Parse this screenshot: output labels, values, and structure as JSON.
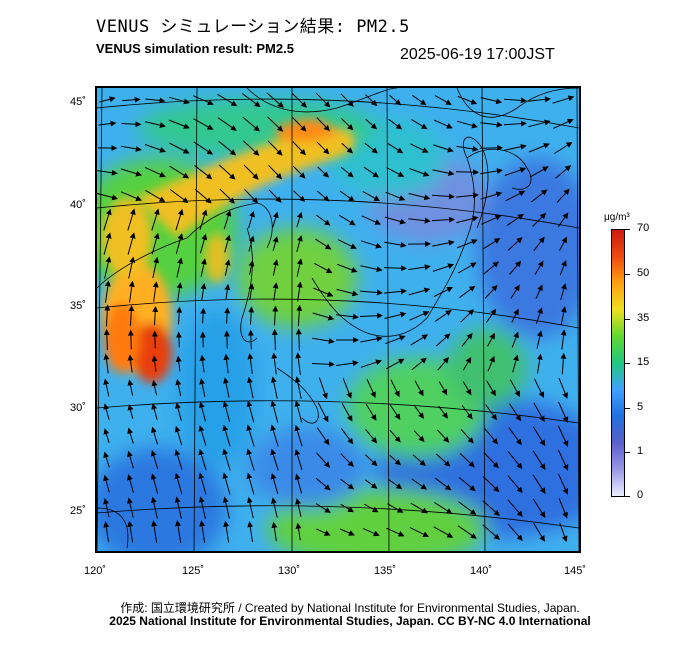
{
  "header": {
    "title_ja": "VENUS シミュレーション結果: PM2.5",
    "title_en": "VENUS simulation result: PM2.5",
    "datetime": "2025-06-19 17:00JST"
  },
  "map": {
    "lat_labels": [
      "45˚",
      "40˚",
      "35˚",
      "30˚",
      "25˚"
    ],
    "lon_labels": [
      "120˚",
      "125˚",
      "130˚",
      "135˚",
      "140˚",
      "145˚"
    ]
  },
  "colorbar": {
    "unit": "μg/m³",
    "labels": [
      "70",
      "50",
      "35",
      "15",
      "5",
      "1",
      "0"
    ],
    "colors": [
      "#cc1a10",
      "#ee4a10",
      "#ffa010",
      "#f0e020",
      "#60d830",
      "#20c880",
      "#40a0ff",
      "#2070e0",
      "#5a60c8",
      "#9898e8",
      "#eeeeff"
    ]
  },
  "footer": {
    "credit_ja_en": "作成: 国立環境研究所 / Created by National Institute for Environmental Studies, Japan.",
    "copyright": "2025 National Institute for Environmental Studies, Japan. CC BY-NC 4.0 International"
  }
}
